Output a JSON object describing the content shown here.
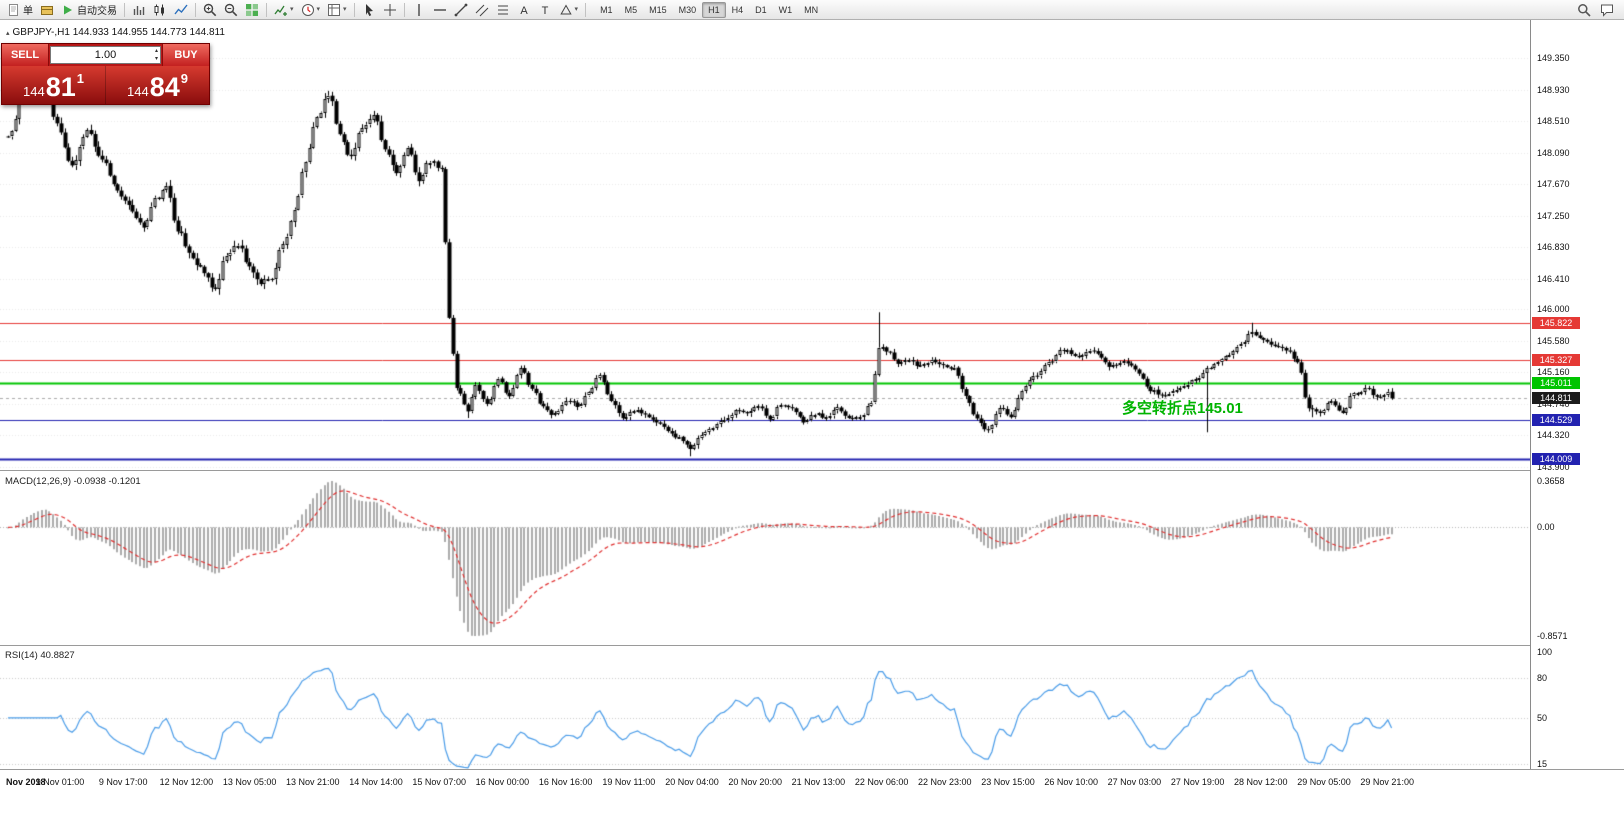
{
  "toolbar": {
    "items": [
      {
        "type": "button",
        "name": "new-order-button",
        "label": "单",
        "icon": "order"
      },
      {
        "type": "button",
        "name": "orders-book-button",
        "icon": "book"
      },
      {
        "type": "button",
        "name": "autotrade-button",
        "label": "自动交易",
        "icon": "play"
      },
      {
        "type": "sep"
      },
      {
        "type": "button",
        "name": "bar-chart-button",
        "icon": "chart-bars"
      },
      {
        "type": "button",
        "name": "candlestick-chart-button",
        "icon": "chart-candles"
      },
      {
        "type": "button",
        "name": "line-chart-button",
        "icon": "chart-line"
      },
      {
        "type": "sep"
      },
      {
        "type": "button",
        "name": "zoom-in-button",
        "icon": "zoom-in"
      },
      {
        "type": "button",
        "name": "zoom-out-button",
        "icon": "zoom-out"
      },
      {
        "type": "button",
        "name": "tile-windows-button",
        "icon": "tile"
      },
      {
        "type": "sep"
      },
      {
        "type": "button",
        "name": "indicators-button",
        "icon": "indicator",
        "dropdown": true
      },
      {
        "type": "button",
        "name": "periods-button",
        "icon": "clock",
        "dropdown": true
      },
      {
        "type": "button",
        "name": "templates-button",
        "icon": "template",
        "dropdown": true
      },
      {
        "type": "sep"
      },
      {
        "type": "button",
        "name": "cursor-button",
        "icon": "cursor"
      },
      {
        "type": "button",
        "name": "crosshair-button",
        "icon": "crosshair"
      },
      {
        "type": "sep"
      },
      {
        "type": "button",
        "name": "vertical-line-button",
        "icon": "vline"
      },
      {
        "type": "button",
        "name": "horizontal-line-button",
        "icon": "hline"
      },
      {
        "type": "button",
        "name": "trendline-button",
        "icon": "trendline"
      },
      {
        "type": "button",
        "name": "channel-button",
        "icon": "channel"
      },
      {
        "type": "button",
        "name": "fibonacci-button",
        "icon": "fibo"
      },
      {
        "type": "button",
        "name": "text-button",
        "icon": "textA"
      },
      {
        "type": "button",
        "name": "text-label-button",
        "icon": "labelT"
      },
      {
        "type": "button",
        "name": "shapes-button",
        "icon": "shapes",
        "dropdown": true
      },
      {
        "type": "sep"
      }
    ],
    "timeframes": [
      "M1",
      "M5",
      "M15",
      "M30",
      "H1",
      "H4",
      "D1",
      "W1",
      "MN"
    ],
    "active_timeframe": "H1",
    "right_items": [
      {
        "name": "search-button",
        "icon": "search"
      },
      {
        "name": "chat-button",
        "icon": "chat"
      }
    ]
  },
  "chart": {
    "symbol_label": "GBPJPY-,H1  144.933 144.955 144.773 144.811"
  },
  "trade_panel": {
    "sell_label": "SELL",
    "buy_label": "BUY",
    "lot_value": "1.00",
    "sell_price": {
      "prefix": "144",
      "big": "81",
      "sup": "1"
    },
    "buy_price": {
      "prefix": "144",
      "big": "84",
      "sup": "9"
    }
  },
  "price_pane": {
    "axis_labels": [
      "149.350",
      "148.930",
      "148.510",
      "148.090",
      "147.670",
      "147.250",
      "146.830",
      "146.410",
      "146.000",
      "145.580",
      "145.160",
      "144.740",
      "144.320",
      "143.900"
    ],
    "levels": [
      {
        "price": 145.822,
        "tag": "145.822",
        "color": "#e53935",
        "width": 1
      },
      {
        "price": 145.327,
        "tag": "145.327",
        "color": "#e53935",
        "width": 1
      },
      {
        "price": 145.011,
        "tag": "145.011",
        "color": "#00c400",
        "width": 2
      },
      {
        "price": 144.529,
        "tag": "144.529",
        "color": "#2222b0",
        "width": 1
      },
      {
        "price": 144.009,
        "tag": "144.009",
        "color": "#2222b0",
        "width": 2
      }
    ],
    "current": {
      "price": 144.811,
      "tag": "144.811",
      "color": "#1c1c1c"
    },
    "annotation": {
      "text": "多空转折点145.01",
      "color": "#00b400"
    }
  },
  "macd_pane": {
    "label": "MACD(12,26,9) -0.0938 -0.1201",
    "axis_labels": [
      "0.3658",
      "0.00",
      "-0.8571"
    ],
    "max": 0.3658,
    "min": -0.8571,
    "histogram_color": "#ababab",
    "signal_color": "#e03030"
  },
  "rsi_pane": {
    "label": "RSI(14) 40.8827",
    "axis_labels": [
      "100",
      "80",
      "50",
      "15"
    ],
    "levels": [
      80,
      50,
      15
    ],
    "period": 14,
    "line_color": "#4a9ce8"
  },
  "time_axis": {
    "labels": [
      "Nov 2018",
      "9 Nov 01:00",
      "9 Nov 17:00",
      "12 Nov 12:00",
      "13 Nov 05:00",
      "13 Nov 21:00",
      "14 Nov 14:00",
      "15 Nov 07:00",
      "16 Nov 00:00",
      "16 Nov 16:00",
      "19 Nov 11:00",
      "20 Nov 04:00",
      "20 Nov 20:00",
      "21 Nov 13:00",
      "22 Nov 06:00",
      "22 Nov 23:00",
      "23 Nov 15:00",
      "26 Nov 10:00",
      "27 Nov 03:00",
      "27 Nov 19:00",
      "28 Nov 12:00",
      "29 Nov 05:00",
      "29 Nov 21:00"
    ]
  },
  "chart_data": {
    "type": "candlestick",
    "symbol": "GBPJPY",
    "timeframe": "H1",
    "count": 368,
    "seed": 11,
    "vol_hi": 0.1,
    "vol_lo": 0.055,
    "vol_switch": 115,
    "last_close": 144.811,
    "anchors": [
      [
        0,
        148.3
      ],
      [
        5,
        148.95
      ],
      [
        9,
        149.1
      ],
      [
        13,
        148.45
      ],
      [
        17,
        147.95
      ],
      [
        21,
        148.4
      ],
      [
        25,
        147.95
      ],
      [
        29,
        147.6
      ],
      [
        33,
        147.3
      ],
      [
        36,
        147.1
      ],
      [
        39,
        147.45
      ],
      [
        42,
        147.6
      ],
      [
        45,
        147.1
      ],
      [
        48,
        146.75
      ],
      [
        51,
        146.55
      ],
      [
        55,
        146.3
      ],
      [
        58,
        146.7
      ],
      [
        61,
        146.9
      ],
      [
        64,
        146.55
      ],
      [
        67,
        146.35
      ],
      [
        70,
        146.45
      ],
      [
        73,
        146.9
      ],
      [
        76,
        147.3
      ],
      [
        79,
        147.95
      ],
      [
        82,
        148.55
      ],
      [
        85,
        148.9
      ],
      [
        88,
        148.35
      ],
      [
        91,
        148.05
      ],
      [
        94,
        148.45
      ],
      [
        97,
        148.55
      ],
      [
        100,
        148.1
      ],
      [
        103,
        147.85
      ],
      [
        106,
        148.1
      ],
      [
        109,
        147.75
      ],
      [
        112,
        147.95
      ],
      [
        115,
        147.85
      ],
      [
        117,
        145.9
      ],
      [
        119,
        144.95
      ],
      [
        122,
        144.65
      ],
      [
        124,
        145.0
      ],
      [
        127,
        144.75
      ],
      [
        130,
        145.05
      ],
      [
        133,
        144.85
      ],
      [
        136,
        145.2
      ],
      [
        139,
        144.95
      ],
      [
        142,
        144.7
      ],
      [
        145,
        144.6
      ],
      [
        148,
        144.75
      ],
      [
        151,
        144.7
      ],
      [
        154,
        144.9
      ],
      [
        157,
        145.15
      ],
      [
        160,
        144.8
      ],
      [
        163,
        144.55
      ],
      [
        166,
        144.65
      ],
      [
        169,
        144.6
      ],
      [
        172,
        144.5
      ],
      [
        175,
        144.4
      ],
      [
        178,
        144.3
      ],
      [
        181,
        144.15
      ],
      [
        184,
        144.3
      ],
      [
        187,
        144.45
      ],
      [
        190,
        144.55
      ],
      [
        193,
        144.65
      ],
      [
        196,
        144.6
      ],
      [
        199,
        144.7
      ],
      [
        202,
        144.55
      ],
      [
        205,
        144.75
      ],
      [
        208,
        144.65
      ],
      [
        211,
        144.5
      ],
      [
        214,
        144.6
      ],
      [
        217,
        144.55
      ],
      [
        220,
        144.65
      ],
      [
        223,
        144.55
      ],
      [
        226,
        144.6
      ],
      [
        229,
        144.75
      ],
      [
        231,
        145.5
      ],
      [
        233,
        145.45
      ],
      [
        236,
        145.3
      ],
      [
        239,
        145.35
      ],
      [
        242,
        145.25
      ],
      [
        245,
        145.3
      ],
      [
        248,
        145.25
      ],
      [
        251,
        145.2
      ],
      [
        254,
        144.85
      ],
      [
        257,
        144.55
      ],
      [
        260,
        144.4
      ],
      [
        263,
        144.7
      ],
      [
        266,
        144.55
      ],
      [
        269,
        144.9
      ],
      [
        272,
        145.1
      ],
      [
        276,
        145.3
      ],
      [
        280,
        145.45
      ],
      [
        284,
        145.35
      ],
      [
        288,
        145.45
      ],
      [
        292,
        145.25
      ],
      [
        296,
        145.3
      ],
      [
        300,
        145.15
      ],
      [
        303,
        144.95
      ],
      [
        306,
        144.85
      ],
      [
        309,
        144.9
      ],
      [
        312,
        144.95
      ],
      [
        315,
        145.05
      ],
      [
        318,
        145.2
      ],
      [
        321,
        145.3
      ],
      [
        324,
        145.4
      ],
      [
        327,
        145.55
      ],
      [
        330,
        145.7
      ],
      [
        333,
        145.6
      ],
      [
        336,
        145.55
      ],
      [
        339,
        145.45
      ],
      [
        342,
        145.3
      ],
      [
        345,
        144.7
      ],
      [
        348,
        144.6
      ],
      [
        351,
        144.75
      ],
      [
        354,
        144.65
      ],
      [
        357,
        144.9
      ],
      [
        360,
        144.95
      ],
      [
        363,
        144.85
      ],
      [
        366,
        144.9
      ],
      [
        367,
        144.811
      ]
    ],
    "wick_overrides": [
      {
        "i": 9,
        "high": 149.32
      },
      {
        "i": 10,
        "high": 149.25
      },
      {
        "i": 231,
        "high": 145.96
      },
      {
        "i": 330,
        "high": 145.82
      },
      {
        "i": 181,
        "low": 144.04
      },
      {
        "i": 122,
        "low": 144.55
      },
      {
        "i": 318,
        "low": 144.36
      },
      {
        "i": 346,
        "low": 144.56
      }
    ]
  }
}
